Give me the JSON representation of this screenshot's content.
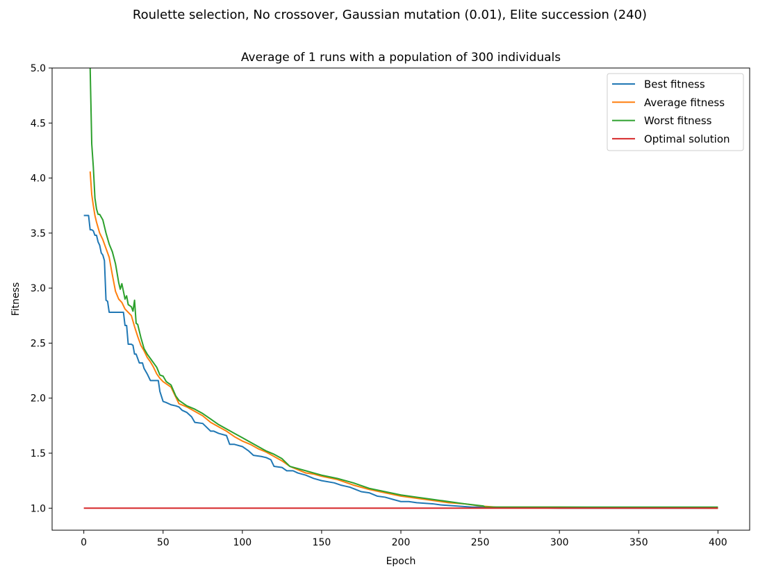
{
  "figure": {
    "suptitle": "Roulette selection, No crossover, Gaussian mutation (0.01), Elite succession (240)"
  },
  "chart_data": {
    "type": "line",
    "title": "Average of 1 runs with a population of 300 individuals",
    "xlabel": "Epoch",
    "ylabel": "Fitness",
    "xlim": [
      -20,
      420
    ],
    "ylim": [
      0.8,
      5.0
    ],
    "xticks": [
      0,
      50,
      100,
      150,
      200,
      250,
      300,
      350,
      400
    ],
    "xtick_labels": [
      "0",
      "50",
      "100",
      "150",
      "200",
      "250",
      "300",
      "350",
      "400"
    ],
    "yticks": [
      1.0,
      1.5,
      2.0,
      2.5,
      3.0,
      3.5,
      4.0,
      4.5,
      5.0
    ],
    "ytick_labels": [
      "1.0",
      "1.5",
      "2.0",
      "2.5",
      "3.0",
      "3.5",
      "4.0",
      "4.5",
      "5.0"
    ],
    "grid": false,
    "legend_position": "top-right",
    "series": [
      {
        "name": "Best fitness",
        "color": "#1f77b4",
        "x": [
          0,
          3,
          4,
          5,
          6,
          7,
          8,
          9,
          10,
          11,
          12,
          13,
          14,
          15,
          16,
          17,
          20,
          25,
          26,
          27,
          28,
          30,
          31,
          32,
          33,
          35,
          37,
          38,
          40,
          42,
          43,
          47,
          48,
          50,
          52,
          55,
          58,
          60,
          62,
          65,
          68,
          70,
          75,
          80,
          82,
          85,
          90,
          92,
          95,
          100,
          104,
          107,
          112,
          115,
          118,
          120,
          125,
          128,
          132,
          135,
          140,
          145,
          150,
          158,
          162,
          165,
          168,
          175,
          180,
          185,
          190,
          195,
          200,
          205,
          210,
          220,
          225,
          235,
          245,
          255,
          300,
          400
        ],
        "values": [
          3.66,
          3.66,
          3.53,
          3.53,
          3.52,
          3.48,
          3.48,
          3.42,
          3.39,
          3.32,
          3.3,
          3.25,
          2.89,
          2.88,
          2.78,
          2.78,
          2.78,
          2.78,
          2.66,
          2.66,
          2.49,
          2.49,
          2.48,
          2.4,
          2.4,
          2.32,
          2.32,
          2.27,
          2.22,
          2.16,
          2.16,
          2.16,
          2.06,
          1.97,
          1.96,
          1.94,
          1.93,
          1.92,
          1.89,
          1.87,
          1.83,
          1.78,
          1.77,
          1.7,
          1.7,
          1.68,
          1.66,
          1.58,
          1.58,
          1.56,
          1.52,
          1.48,
          1.47,
          1.46,
          1.44,
          1.38,
          1.37,
          1.34,
          1.34,
          1.32,
          1.3,
          1.27,
          1.25,
          1.23,
          1.21,
          1.2,
          1.19,
          1.15,
          1.14,
          1.11,
          1.1,
          1.08,
          1.06,
          1.06,
          1.05,
          1.04,
          1.03,
          1.02,
          1.01,
          1.01,
          1.0,
          1.0
        ]
      },
      {
        "name": "Average fitness",
        "color": "#ff7f0e",
        "x": [
          4,
          5,
          6,
          7,
          8,
          9,
          10,
          12,
          14,
          16,
          18,
          20,
          22,
          24,
          26,
          28,
          30,
          32,
          34,
          36,
          38,
          40,
          42,
          44,
          46,
          48,
          50,
          55,
          60,
          65,
          70,
          75,
          80,
          85,
          90,
          95,
          100,
          105,
          110,
          115,
          120,
          125,
          130,
          135,
          140,
          145,
          150,
          160,
          170,
          180,
          190,
          200,
          210,
          220,
          230,
          240,
          250,
          260,
          300,
          400
        ],
        "values": [
          4.06,
          3.85,
          3.75,
          3.66,
          3.6,
          3.55,
          3.5,
          3.44,
          3.36,
          3.28,
          3.12,
          2.97,
          2.9,
          2.87,
          2.81,
          2.78,
          2.75,
          2.65,
          2.56,
          2.48,
          2.43,
          2.37,
          2.33,
          2.28,
          2.22,
          2.18,
          2.15,
          2.1,
          1.95,
          1.92,
          1.88,
          1.84,
          1.78,
          1.74,
          1.7,
          1.65,
          1.61,
          1.58,
          1.54,
          1.51,
          1.47,
          1.43,
          1.38,
          1.35,
          1.32,
          1.31,
          1.29,
          1.26,
          1.21,
          1.17,
          1.14,
          1.11,
          1.09,
          1.07,
          1.05,
          1.04,
          1.02,
          1.01,
          1.01,
          1.0
        ]
      },
      {
        "name": "Worst fitness",
        "color": "#2ca02c",
        "x": [
          4,
          5,
          6,
          7,
          8,
          9,
          10,
          12,
          14,
          16,
          18,
          20,
          22,
          23,
          24,
          25,
          26,
          27,
          28,
          30,
          31,
          32,
          33,
          34,
          36,
          38,
          40,
          42,
          44,
          46,
          48,
          50,
          52,
          55,
          58,
          60,
          65,
          70,
          75,
          80,
          85,
          90,
          95,
          100,
          105,
          110,
          115,
          120,
          125,
          130,
          135,
          140,
          145,
          150,
          160,
          170,
          180,
          190,
          200,
          210,
          220,
          230,
          240,
          252,
          253,
          260,
          300,
          400
        ],
        "values": [
          5.0,
          4.31,
          4.1,
          3.82,
          3.72,
          3.67,
          3.67,
          3.62,
          3.5,
          3.4,
          3.33,
          3.22,
          3.05,
          2.99,
          3.04,
          2.97,
          2.9,
          2.93,
          2.85,
          2.83,
          2.79,
          2.89,
          2.68,
          2.67,
          2.55,
          2.45,
          2.4,
          2.36,
          2.32,
          2.28,
          2.21,
          2.2,
          2.15,
          2.12,
          2.02,
          1.98,
          1.93,
          1.9,
          1.86,
          1.81,
          1.76,
          1.72,
          1.68,
          1.64,
          1.6,
          1.56,
          1.52,
          1.49,
          1.45,
          1.38,
          1.36,
          1.34,
          1.32,
          1.3,
          1.27,
          1.23,
          1.18,
          1.15,
          1.12,
          1.1,
          1.08,
          1.06,
          1.04,
          1.02,
          1.01,
          1.01,
          1.01,
          1.01
        ]
      },
      {
        "name": "Optimal solution",
        "color": "#d62728",
        "x": [
          0,
          400
        ],
        "values": [
          1.0,
          1.0
        ]
      }
    ]
  }
}
